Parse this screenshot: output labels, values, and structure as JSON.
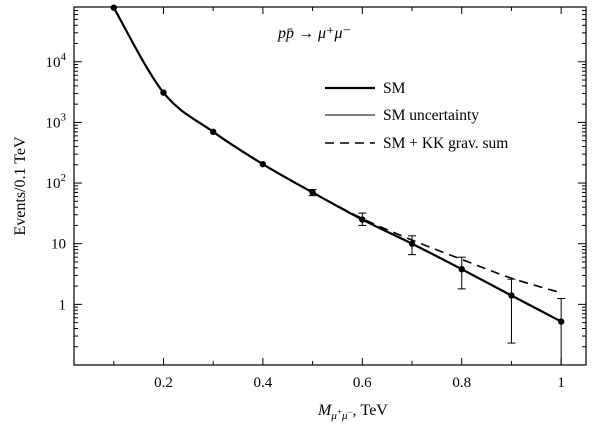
{
  "chart_data": {
    "type": "line",
    "process_label": "pp̄ → μ⁺μ⁻",
    "xlabel": "M_{μ⁺μ⁻}, TeV",
    "ylabel": "Events/0.1 TeV",
    "xlim": [
      0.02,
      1.05
    ],
    "ylim": [
      0.1,
      80000
    ],
    "yscale": "log",
    "x_ticks": [
      0.2,
      0.4,
      0.6,
      0.8,
      1.0
    ],
    "x_tick_labels": [
      "0.2",
      "0.4",
      "0.6",
      "0.8",
      "1"
    ],
    "y_ticks": [
      {
        "value": 1,
        "label": "1",
        "power": ""
      },
      {
        "value": 10,
        "label": "10",
        "power": ""
      },
      {
        "value": 100,
        "label": "10",
        "power": "2"
      },
      {
        "value": 1000,
        "label": "10",
        "power": "3"
      },
      {
        "value": 10000,
        "label": "10",
        "power": "4"
      }
    ],
    "legend": {
      "placement": "top-right",
      "entries": [
        {
          "label": "SM",
          "style": "thick"
        },
        {
          "label": "SM uncertainty",
          "style": "thin"
        },
        {
          "label": "SM + KK grav. sum",
          "style": "dashed"
        }
      ]
    },
    "series": [
      {
        "name": "SM",
        "style": "thick",
        "x": [
          0.1,
          0.2,
          0.3,
          0.4,
          0.5,
          0.6,
          0.7,
          0.8,
          0.9,
          1.0
        ],
        "y": [
          78000,
          3100,
          700,
          205,
          70,
          25,
          10,
          3.8,
          1.4,
          0.52
        ]
      },
      {
        "name": "SM + KK grav. sum",
        "style": "dashed",
        "x": [
          0.5,
          0.6,
          0.7,
          0.8,
          0.9,
          1.0
        ],
        "y": [
          70,
          26,
          11.5,
          5.5,
          2.7,
          1.55
        ]
      }
    ],
    "points": {
      "x": [
        0.1,
        0.2,
        0.3,
        0.4,
        0.5,
        0.6,
        0.7,
        0.8,
        0.9,
        1.0
      ],
      "y": [
        78000,
        3100,
        700,
        205,
        70,
        25,
        10,
        3.8,
        1.4,
        0.52
      ],
      "err_low": [
        null,
        null,
        null,
        null,
        62,
        20,
        6.6,
        1.8,
        0.23,
        0.1
      ],
      "err_high": [
        null,
        null,
        null,
        null,
        78,
        32,
        13.5,
        6.0,
        2.6,
        1.25
      ]
    }
  }
}
